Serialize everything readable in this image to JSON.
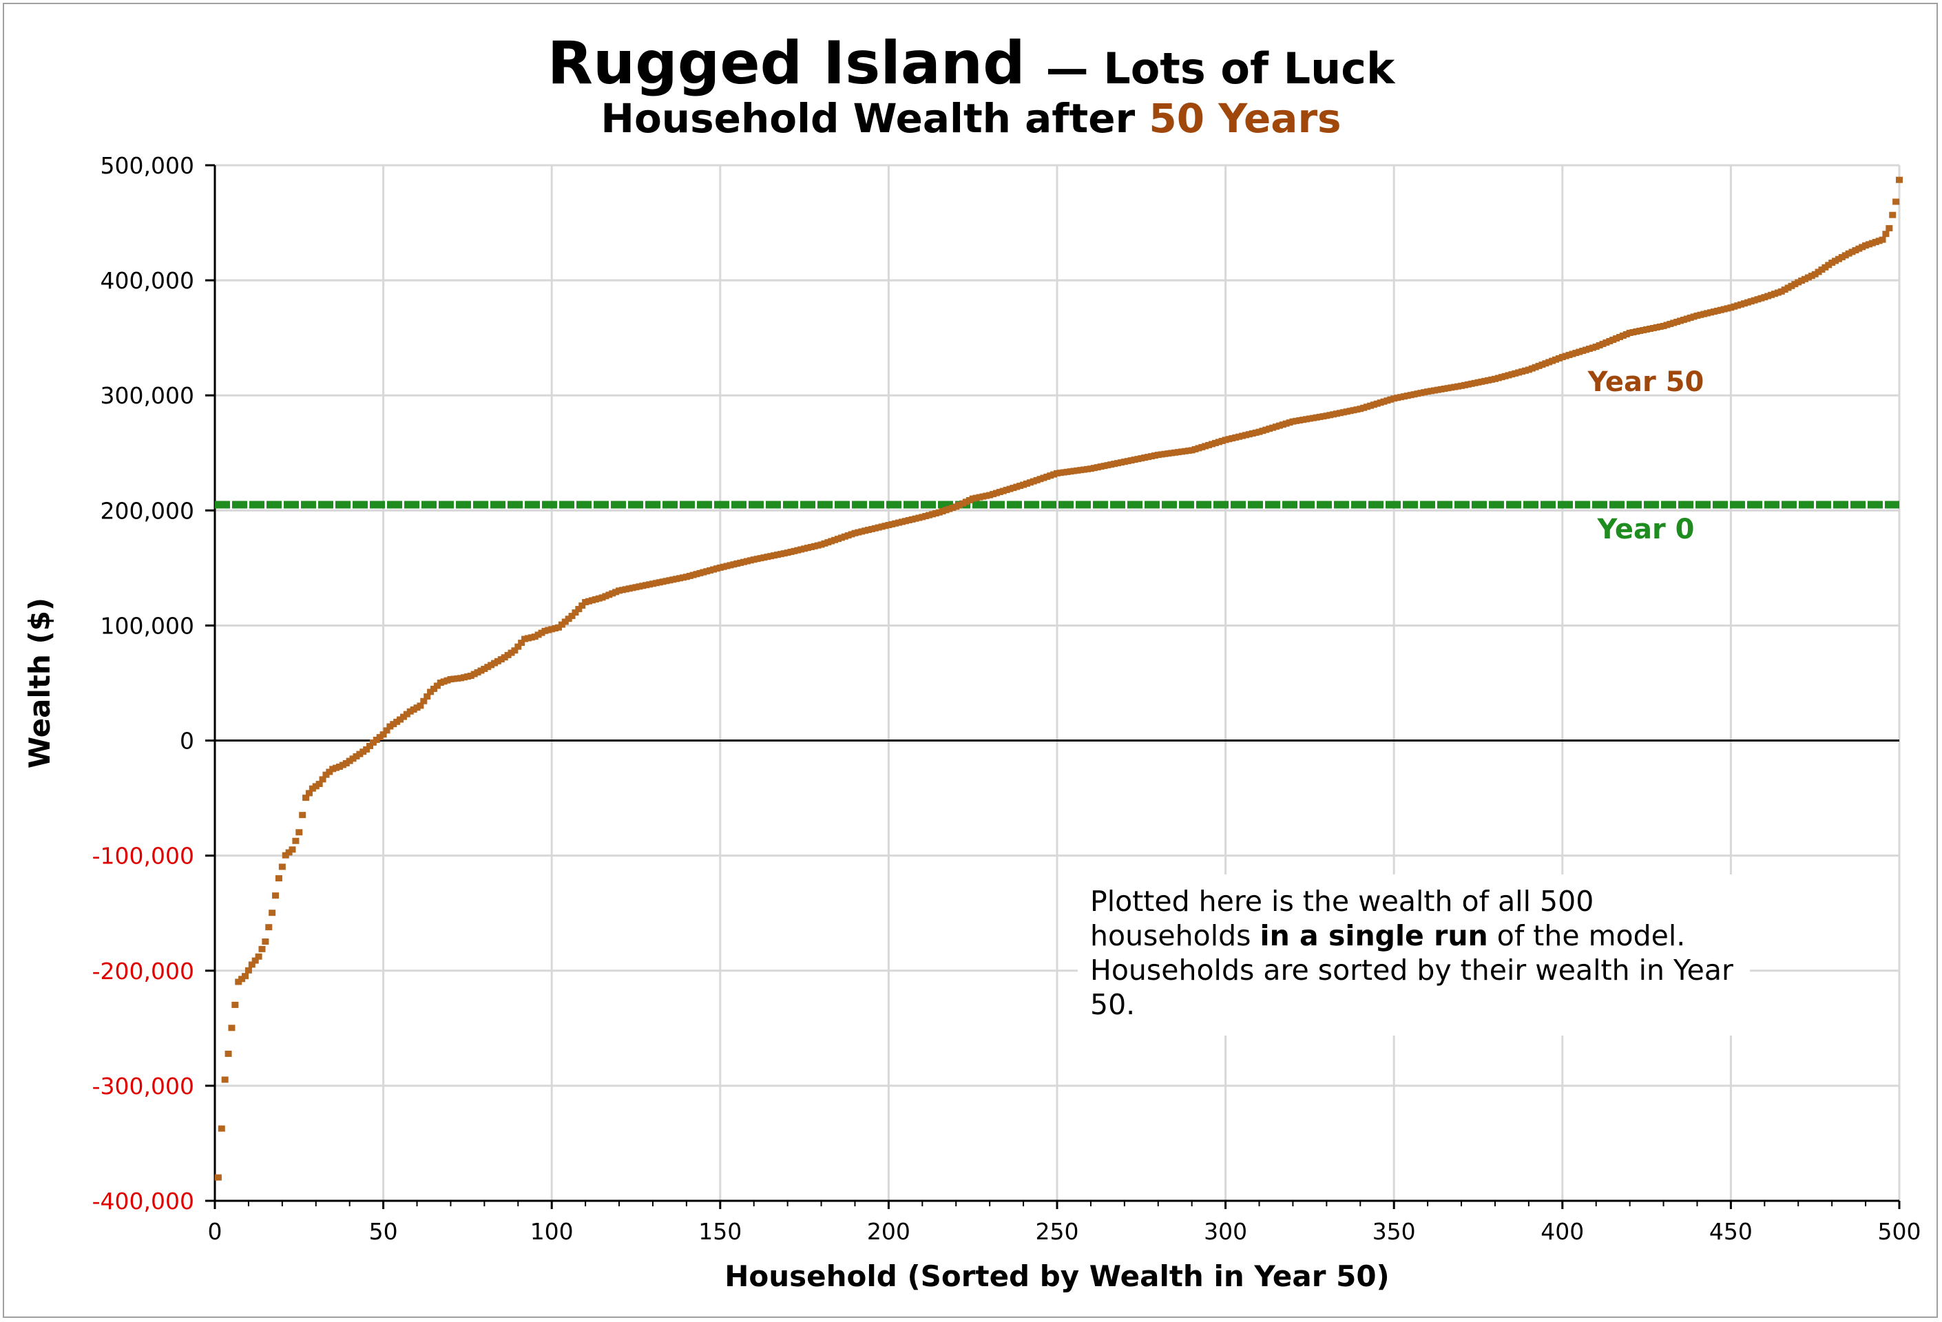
{
  "title": {
    "main": "Rugged Island",
    "dash_sub": "— Lots of Luck",
    "sub_prefix": "Household Wealth after",
    "sub_accent": "50 Years"
  },
  "annotation": {
    "part1": "Plotted here is the wealth of all 500 households ",
    "bold": "in a single run",
    "part2": " of the model. Households are sorted by their wealth in Year 50."
  },
  "colors": {
    "year50": "#b4651e",
    "year50_label": "#a0480c",
    "year0": "#1e8c1e",
    "negative_tick": "#e00000",
    "grid": "#d8d8d8",
    "zero_line": "#000000"
  },
  "chart_data": {
    "type": "scatter",
    "xlabel": "Household (Sorted by Wealth in Year 50)",
    "ylabel": "Wealth ($)",
    "xlim": [
      0,
      500
    ],
    "ylim": [
      -400000,
      500000
    ],
    "x_ticks": [
      0,
      50,
      100,
      150,
      200,
      250,
      300,
      350,
      400,
      450,
      500
    ],
    "x_tick_labels": [
      "0",
      "50",
      "100",
      "150",
      "200",
      "250",
      "300",
      "350",
      "400",
      "450",
      "500"
    ],
    "y_ticks": [
      -400000,
      -300000,
      -200000,
      -100000,
      0,
      100000,
      200000,
      300000,
      400000,
      500000
    ],
    "y_tick_labels": [
      "-400,000",
      "-300,000",
      "-200,000",
      "-100,000",
      "0",
      "100,000",
      "200,000",
      "300,000",
      "400,000",
      "500,000"
    ],
    "grid": true,
    "series": [
      {
        "name": "Year 50",
        "style": "points",
        "x": [
          1,
          3,
          5,
          7,
          9,
          11,
          13,
          15,
          17,
          19,
          21,
          23,
          25,
          27,
          29,
          31,
          33,
          35,
          37,
          39,
          41,
          43,
          45,
          47,
          50,
          52,
          55,
          58,
          61,
          64,
          67,
          70,
          73,
          76,
          80,
          83,
          86,
          89,
          92,
          95,
          98,
          102,
          106,
          110,
          115,
          120,
          130,
          140,
          150,
          160,
          170,
          180,
          190,
          200,
          210,
          215,
          220,
          225,
          230,
          240,
          250,
          260,
          270,
          280,
          290,
          300,
          310,
          320,
          330,
          340,
          350,
          360,
          370,
          380,
          390,
          400,
          410,
          420,
          430,
          440,
          450,
          460,
          465,
          470,
          475,
          480,
          485,
          490,
          495,
          497,
          499,
          500
        ],
        "y": [
          -380000,
          -295000,
          -250000,
          -210000,
          -205000,
          -195000,
          -188000,
          -175000,
          -150000,
          -120000,
          -100000,
          -95000,
          -80000,
          -50000,
          -42000,
          -38000,
          -30000,
          -25000,
          -23000,
          -20000,
          -16000,
          -12000,
          -8000,
          -2000,
          5000,
          12000,
          18000,
          25000,
          30000,
          42000,
          50000,
          53000,
          54000,
          56000,
          62000,
          67000,
          72000,
          78000,
          88000,
          90000,
          95000,
          98000,
          108000,
          120000,
          124000,
          130000,
          136000,
          142000,
          150000,
          157000,
          163000,
          170000,
          180000,
          187000,
          194000,
          198000,
          203000,
          210000,
          213000,
          222000,
          232000,
          236000,
          242000,
          248000,
          252000,
          261000,
          268000,
          277000,
          282000,
          288000,
          297000,
          303000,
          308000,
          314000,
          322000,
          333000,
          342000,
          354000,
          360000,
          369000,
          376000,
          385000,
          390000,
          398000,
          405000,
          415000,
          423000,
          430000,
          435000,
          445000,
          468000,
          487000
        ]
      },
      {
        "name": "Year 0",
        "style": "line",
        "x": [
          0,
          500
        ],
        "y": [
          205000,
          205000
        ]
      }
    ]
  }
}
